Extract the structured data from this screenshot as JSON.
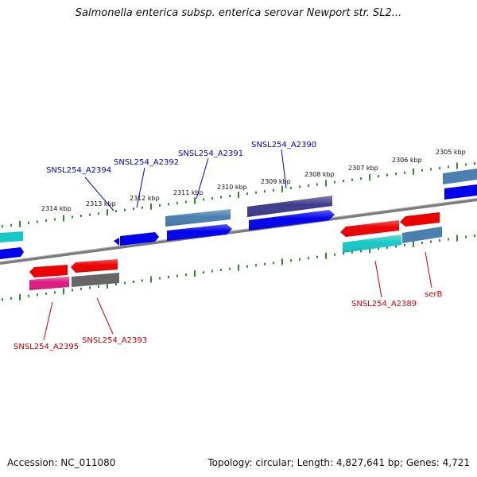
{
  "title": "Salmonella enterica subsp. enterica serovar Newport str. SL2...",
  "footer": {
    "accession": "Accession: NC_011080",
    "topology": "Topology: circular; Length: 4,827,641 bp; Genes: 4,721"
  },
  "colors": {
    "backbone": "#808080",
    "tick": "#2e8b2e",
    "forward_label": "#0000cc",
    "reverse_label": "#cc0000",
    "blue": "#0000ee",
    "steelblue": "#4a7fb0",
    "darkpurple": "#3d3b8c",
    "cyan": "#17c8c8",
    "red": "#ee0000",
    "magenta": "#e0197f",
    "gray": "#666666"
  },
  "scale": {
    "unit": "kbp",
    "tick_labels": [
      "2314 kbp",
      "2313 kbp",
      "2312 kbp",
      "2311 kbp",
      "2310 kbp",
      "2309 kbp",
      "2308 kbp",
      "2307 kbp",
      "2306 kbp",
      "2305 kbp"
    ]
  },
  "genes": [
    {
      "name": "SNSL254_A2394",
      "strand": "forward",
      "labeled": true
    },
    {
      "name": "SNSL254_A2392",
      "strand": "forward",
      "labeled": true
    },
    {
      "name": "SNSL254_A2391",
      "strand": "forward",
      "labeled": true
    },
    {
      "name": "SNSL254_A2390",
      "strand": "forward",
      "labeled": true
    },
    {
      "name": "SNSL254_A2395",
      "strand": "reverse",
      "labeled": true
    },
    {
      "name": "SNSL254_A2393",
      "strand": "reverse",
      "labeled": true
    },
    {
      "name": "SNSL254_A2389",
      "strand": "reverse",
      "labeled": true
    },
    {
      "name": "serB",
      "strand": "reverse",
      "labeled": true
    }
  ]
}
